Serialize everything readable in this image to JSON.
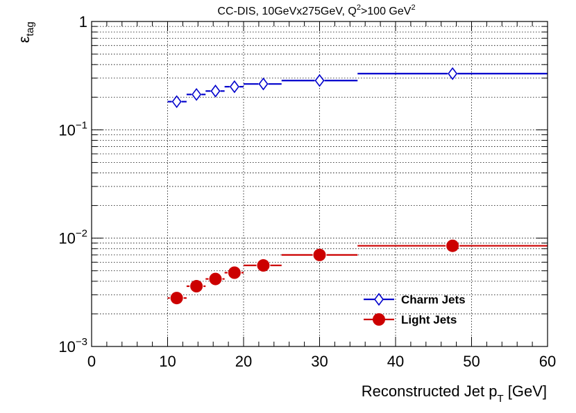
{
  "chart_data": {
    "type": "scatter",
    "title_main": "CC-DIS, 10GeVx275GeV, Q",
    "title_sup1": "2",
    "title_mid": ">100 GeV",
    "title_sup2": "2",
    "xlabel_main": "Reconstructed Jet p",
    "xlabel_sub": "T",
    "xlabel_unit": " [GeV]",
    "ylabel_main": "ε",
    "ylabel_sub": "tag",
    "xlim": [
      0,
      60
    ],
    "ylim": [
      0.001,
      1
    ],
    "yscale": "log",
    "grid": true,
    "x_ticks": [
      {
        "value": 0,
        "label": "0"
      },
      {
        "value": 10,
        "label": "10"
      },
      {
        "value": 20,
        "label": "20"
      },
      {
        "value": 30,
        "label": "30"
      },
      {
        "value": 40,
        "label": "40"
      },
      {
        "value": 50,
        "label": "50"
      },
      {
        "value": 60,
        "label": "60"
      }
    ],
    "y_ticks": [
      {
        "value": 1,
        "base": "1",
        "exp": ""
      },
      {
        "value": 0.1,
        "base": "10",
        "exp": "−1"
      },
      {
        "value": 0.01,
        "base": "10",
        "exp": "−2"
      },
      {
        "value": 0.001,
        "base": "10",
        "exp": "−3"
      }
    ],
    "legend_position": "bottom-right",
    "series": [
      {
        "name": "Charm Jets",
        "color": "#0000cc",
        "marker": "open-diamond",
        "points": [
          {
            "x": 11.2,
            "y": 0.182,
            "xlo": 10.0,
            "xhi": 12.5
          },
          {
            "x": 13.8,
            "y": 0.212,
            "xlo": 12.5,
            "xhi": 15.0
          },
          {
            "x": 16.3,
            "y": 0.228,
            "xlo": 15.0,
            "xhi": 17.5
          },
          {
            "x": 18.8,
            "y": 0.25,
            "xlo": 17.5,
            "xhi": 20.0
          },
          {
            "x": 22.6,
            "y": 0.265,
            "xlo": 20.0,
            "xhi": 25.0
          },
          {
            "x": 30.0,
            "y": 0.285,
            "xlo": 25.0,
            "xhi": 35.0
          },
          {
            "x": 47.5,
            "y": 0.33,
            "xlo": 35.0,
            "xhi": 60.0
          }
        ]
      },
      {
        "name": "Light Jets",
        "color": "#cc0000",
        "marker": "filled-circle",
        "points": [
          {
            "x": 11.2,
            "y": 0.0028,
            "xlo": 10.0,
            "xhi": 12.5
          },
          {
            "x": 13.8,
            "y": 0.0036,
            "xlo": 12.5,
            "xhi": 15.0
          },
          {
            "x": 16.3,
            "y": 0.0042,
            "xlo": 15.0,
            "xhi": 17.5
          },
          {
            "x": 18.8,
            "y": 0.0048,
            "xlo": 17.5,
            "xhi": 20.0
          },
          {
            "x": 22.6,
            "y": 0.0056,
            "xlo": 20.0,
            "xhi": 25.0
          },
          {
            "x": 30.0,
            "y": 0.007,
            "xlo": 25.0,
            "xhi": 35.0
          },
          {
            "x": 47.5,
            "y": 0.0085,
            "xlo": 35.0,
            "xhi": 60.0
          }
        ]
      }
    ]
  }
}
